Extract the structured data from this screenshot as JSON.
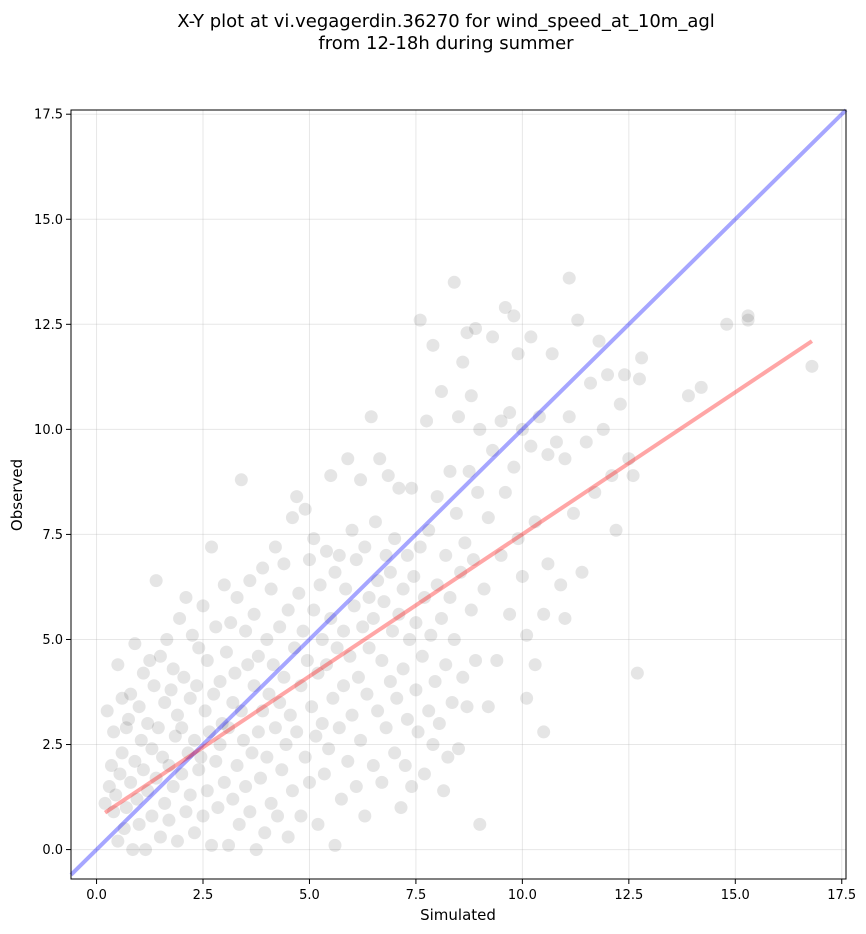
{
  "chart_data": {
    "type": "scatter",
    "title_lines": [
      "X-Y plot at vi.vegagerdin.36270 for wind_speed_at_10m_agl",
      "from 12-18h during summer"
    ],
    "xlabel": "Simulated",
    "ylabel": "Observed",
    "xlim": [
      -0.6,
      17.6
    ],
    "ylim": [
      -0.7,
      17.6
    ],
    "x_ticks": [
      0.0,
      2.5,
      5.0,
      7.5,
      10.0,
      12.5,
      15.0,
      17.5
    ],
    "x_tick_labels": [
      "0.0",
      "2.5",
      "5.0",
      "7.5",
      "10.0",
      "12.5",
      "15.0",
      "17.5"
    ],
    "y_ticks": [
      0.0,
      2.5,
      5.0,
      7.5,
      10.0,
      12.5,
      15.0,
      17.5
    ],
    "y_tick_labels": [
      "0.0",
      "2.5",
      "5.0",
      "7.5",
      "10.0",
      "12.5",
      "15.0",
      "17.5"
    ],
    "grid": true,
    "point_color": "#000000",
    "point_alpha": 0.1,
    "identity_line": {
      "x": [
        -0.6,
        17.6
      ],
      "y": [
        -0.6,
        17.6
      ],
      "color": "#0000ff",
      "alpha": 0.35
    },
    "regression_line": {
      "x": [
        0.2,
        16.8
      ],
      "y": [
        0.88,
        12.1
      ],
      "color": "#ff0000",
      "alpha": 0.35
    },
    "points": [
      [
        0.2,
        1.1
      ],
      [
        0.25,
        3.3
      ],
      [
        0.3,
        1.5
      ],
      [
        0.35,
        2.0
      ],
      [
        0.4,
        2.8
      ],
      [
        0.4,
        0.9
      ],
      [
        0.45,
        1.3
      ],
      [
        0.5,
        4.4
      ],
      [
        0.5,
        0.2
      ],
      [
        0.55,
        1.8
      ],
      [
        0.6,
        2.3
      ],
      [
        0.6,
        3.6
      ],
      [
        0.65,
        0.5
      ],
      [
        0.7,
        2.9
      ],
      [
        0.7,
        1.0
      ],
      [
        0.75,
        3.1
      ],
      [
        0.8,
        3.7
      ],
      [
        0.8,
        1.6
      ],
      [
        0.85,
        0.0
      ],
      [
        0.9,
        2.1
      ],
      [
        0.9,
        4.9
      ],
      [
        0.95,
        1.2
      ],
      [
        1.0,
        3.4
      ],
      [
        1.0,
        0.6
      ],
      [
        1.05,
        2.6
      ],
      [
        1.1,
        4.2
      ],
      [
        1.1,
        1.9
      ],
      [
        1.15,
        0.0
      ],
      [
        1.2,
        3.0
      ],
      [
        1.2,
        1.4
      ],
      [
        1.25,
        4.5
      ],
      [
        1.3,
        2.4
      ],
      [
        1.3,
        0.8
      ],
      [
        1.35,
        3.9
      ],
      [
        1.4,
        6.4
      ],
      [
        1.4,
        1.7
      ],
      [
        1.45,
        2.9
      ],
      [
        1.5,
        0.3
      ],
      [
        1.5,
        4.6
      ],
      [
        1.55,
        2.2
      ],
      [
        1.6,
        1.1
      ],
      [
        1.6,
        3.5
      ],
      [
        1.65,
        5.0
      ],
      [
        1.7,
        2.0
      ],
      [
        1.7,
        0.7
      ],
      [
        1.75,
        3.8
      ],
      [
        1.8,
        1.5
      ],
      [
        1.8,
        4.3
      ],
      [
        1.85,
        2.7
      ],
      [
        1.9,
        0.2
      ],
      [
        1.9,
        3.2
      ],
      [
        1.95,
        5.5
      ],
      [
        2.0,
        1.8
      ],
      [
        2.0,
        2.9
      ],
      [
        2.05,
        4.1
      ],
      [
        2.1,
        0.9
      ],
      [
        2.1,
        6.0
      ],
      [
        2.15,
        2.3
      ],
      [
        2.2,
        3.6
      ],
      [
        2.2,
        1.3
      ],
      [
        2.25,
        5.1
      ],
      [
        2.3,
        2.6
      ],
      [
        2.3,
        0.4
      ],
      [
        2.35,
        3.9
      ],
      [
        2.4,
        4.8
      ],
      [
        2.4,
        1.9
      ],
      [
        2.45,
        2.2
      ],
      [
        2.5,
        5.8
      ],
      [
        2.5,
        0.8
      ],
      [
        2.55,
        3.3
      ],
      [
        2.6,
        1.4
      ],
      [
        2.6,
        4.5
      ],
      [
        2.65,
        2.8
      ],
      [
        2.7,
        7.2
      ],
      [
        2.7,
        0.1
      ],
      [
        2.75,
        3.7
      ],
      [
        2.8,
        2.1
      ],
      [
        2.8,
        5.3
      ],
      [
        2.85,
        1.0
      ],
      [
        2.9,
        4.0
      ],
      [
        2.9,
        2.5
      ],
      [
        2.95,
        3.0
      ],
      [
        3.0,
        6.3
      ],
      [
        3.0,
        1.6
      ],
      [
        3.05,
        4.7
      ],
      [
        3.1,
        0.1
      ],
      [
        3.1,
        2.9
      ],
      [
        3.15,
        5.4
      ],
      [
        3.2,
        3.5
      ],
      [
        3.2,
        1.2
      ],
      [
        3.25,
        4.2
      ],
      [
        3.3,
        2.0
      ],
      [
        3.3,
        6.0
      ],
      [
        3.35,
        0.6
      ],
      [
        3.4,
        3.3
      ],
      [
        3.4,
        8.8
      ],
      [
        3.45,
        2.6
      ],
      [
        3.5,
        5.2
      ],
      [
        3.5,
        1.5
      ],
      [
        3.55,
        4.4
      ],
      [
        3.6,
        6.4
      ],
      [
        3.6,
        0.9
      ],
      [
        3.65,
        2.3
      ],
      [
        3.7,
        3.9
      ],
      [
        3.7,
        5.6
      ],
      [
        3.75,
        0.0
      ],
      [
        3.8,
        2.8
      ],
      [
        3.8,
        4.6
      ],
      [
        3.85,
        1.7
      ],
      [
        3.9,
        6.7
      ],
      [
        3.9,
        3.3
      ],
      [
        3.95,
        0.4
      ],
      [
        4.0,
        5.0
      ],
      [
        4.0,
        2.2
      ],
      [
        4.05,
        3.7
      ],
      [
        4.1,
        6.2
      ],
      [
        4.1,
        1.1
      ],
      [
        4.15,
        4.4
      ],
      [
        4.2,
        2.9
      ],
      [
        4.2,
        7.2
      ],
      [
        4.25,
        0.8
      ],
      [
        4.3,
        5.3
      ],
      [
        4.3,
        3.5
      ],
      [
        4.35,
        1.9
      ],
      [
        4.4,
        6.8
      ],
      [
        4.4,
        4.1
      ],
      [
        4.45,
        2.5
      ],
      [
        4.5,
        0.3
      ],
      [
        4.5,
        5.7
      ],
      [
        4.55,
        3.2
      ],
      [
        4.6,
        7.9
      ],
      [
        4.6,
        1.4
      ],
      [
        4.65,
        4.8
      ],
      [
        4.7,
        2.8
      ],
      [
        4.7,
        8.4
      ],
      [
        4.75,
        6.1
      ],
      [
        4.8,
        3.9
      ],
      [
        4.8,
        0.8
      ],
      [
        4.85,
        5.2
      ],
      [
        4.9,
        2.2
      ],
      [
        4.9,
        8.1
      ],
      [
        4.95,
        4.5
      ],
      [
        5.0,
        6.9
      ],
      [
        5.0,
        1.6
      ],
      [
        5.05,
        3.4
      ],
      [
        5.1,
        5.7
      ],
      [
        5.1,
        7.4
      ],
      [
        5.15,
        2.7
      ],
      [
        5.2,
        4.2
      ],
      [
        5.2,
        0.6
      ],
      [
        5.25,
        6.3
      ],
      [
        5.3,
        3.0
      ],
      [
        5.3,
        5.0
      ],
      [
        5.35,
        1.8
      ],
      [
        5.4,
        7.1
      ],
      [
        5.4,
        4.4
      ],
      [
        5.45,
        2.4
      ],
      [
        5.5,
        8.9
      ],
      [
        5.5,
        5.5
      ],
      [
        5.55,
        3.6
      ],
      [
        5.6,
        0.1
      ],
      [
        5.6,
        6.6
      ],
      [
        5.65,
        4.8
      ],
      [
        5.7,
        2.9
      ],
      [
        5.7,
        7.0
      ],
      [
        5.75,
        1.2
      ],
      [
        5.8,
        5.2
      ],
      [
        5.8,
        3.9
      ],
      [
        5.85,
        6.2
      ],
      [
        5.9,
        9.3
      ],
      [
        5.9,
        2.1
      ],
      [
        5.95,
        4.6
      ],
      [
        6.0,
        7.6
      ],
      [
        6.0,
        3.2
      ],
      [
        6.05,
        5.8
      ],
      [
        6.1,
        1.5
      ],
      [
        6.1,
        6.9
      ],
      [
        6.15,
        4.1
      ],
      [
        6.2,
        2.6
      ],
      [
        6.2,
        8.8
      ],
      [
        6.25,
        5.3
      ],
      [
        6.3,
        0.8
      ],
      [
        6.3,
        7.2
      ],
      [
        6.35,
        3.7
      ],
      [
        6.4,
        6.0
      ],
      [
        6.4,
        4.8
      ],
      [
        6.45,
        10.3
      ],
      [
        6.5,
        2.0
      ],
      [
        6.5,
        5.5
      ],
      [
        6.55,
        7.8
      ],
      [
        6.6,
        3.3
      ],
      [
        6.6,
        6.4
      ],
      [
        6.65,
        9.3
      ],
      [
        6.7,
        1.6
      ],
      [
        6.7,
        4.5
      ],
      [
        6.75,
        5.9
      ],
      [
        6.8,
        7.0
      ],
      [
        6.8,
        2.9
      ],
      [
        6.85,
        8.9
      ],
      [
        6.9,
        4.0
      ],
      [
        6.9,
        6.6
      ],
      [
        6.95,
        5.2
      ],
      [
        7.0,
        2.3
      ],
      [
        7.0,
        7.4
      ],
      [
        7.05,
        3.6
      ],
      [
        7.1,
        8.6
      ],
      [
        7.1,
        5.6
      ],
      [
        7.15,
        1.0
      ],
      [
        7.2,
        6.2
      ],
      [
        7.2,
        4.3
      ],
      [
        7.25,
        2.0
      ],
      [
        7.3,
        7.0
      ],
      [
        7.3,
        3.1
      ],
      [
        7.35,
        5.0
      ],
      [
        7.4,
        8.6
      ],
      [
        7.4,
        1.5
      ],
      [
        7.45,
        6.5
      ],
      [
        7.5,
        3.8
      ],
      [
        7.5,
        5.4
      ],
      [
        7.55,
        2.8
      ],
      [
        7.6,
        7.2
      ],
      [
        7.6,
        12.6
      ],
      [
        7.65,
        4.6
      ],
      [
        7.7,
        1.8
      ],
      [
        7.7,
        6.0
      ],
      [
        7.75,
        10.2
      ],
      [
        7.8,
        3.3
      ],
      [
        7.8,
        7.6
      ],
      [
        7.85,
        5.1
      ],
      [
        7.9,
        12.0
      ],
      [
        7.9,
        2.5
      ],
      [
        7.95,
        4.0
      ],
      [
        8.0,
        8.4
      ],
      [
        8.0,
        6.3
      ],
      [
        8.05,
        3.0
      ],
      [
        8.1,
        10.9
      ],
      [
        8.1,
        5.5
      ],
      [
        8.15,
        1.4
      ],
      [
        8.2,
        7.0
      ],
      [
        8.2,
        4.4
      ],
      [
        8.25,
        2.2
      ],
      [
        8.3,
        9.0
      ],
      [
        8.3,
        6.0
      ],
      [
        8.35,
        3.5
      ],
      [
        8.4,
        13.5
      ],
      [
        8.4,
        5.0
      ],
      [
        8.45,
        8.0
      ],
      [
        8.5,
        10.3
      ],
      [
        8.5,
        2.4
      ],
      [
        8.55,
        6.6
      ],
      [
        8.6,
        4.1
      ],
      [
        8.6,
        11.6
      ],
      [
        8.65,
        7.3
      ],
      [
        8.7,
        3.4
      ],
      [
        8.7,
        12.3
      ],
      [
        8.75,
        9.0
      ],
      [
        8.8,
        5.7
      ],
      [
        8.8,
        10.8
      ],
      [
        8.85,
        6.9
      ],
      [
        8.9,
        12.4
      ],
      [
        8.9,
        4.5
      ],
      [
        8.95,
        8.5
      ],
      [
        9.0,
        0.6
      ],
      [
        9.0,
        10.0
      ],
      [
        9.1,
        6.2
      ],
      [
        9.2,
        7.9
      ],
      [
        9.2,
        3.4
      ],
      [
        9.3,
        12.2
      ],
      [
        9.3,
        9.5
      ],
      [
        9.4,
        4.5
      ],
      [
        9.5,
        10.2
      ],
      [
        9.5,
        7.0
      ],
      [
        9.6,
        12.9
      ],
      [
        9.6,
        8.5
      ],
      [
        9.7,
        10.4
      ],
      [
        9.7,
        5.6
      ],
      [
        9.8,
        12.7
      ],
      [
        9.8,
        9.1
      ],
      [
        9.9,
        7.4
      ],
      [
        9.9,
        11.8
      ],
      [
        10.0,
        10.0
      ],
      [
        10.0,
        6.5
      ],
      [
        10.1,
        5.1
      ],
      [
        10.1,
        3.6
      ],
      [
        10.2,
        12.2
      ],
      [
        10.2,
        9.6
      ],
      [
        10.3,
        4.4
      ],
      [
        10.3,
        7.8
      ],
      [
        10.4,
        10.3
      ],
      [
        10.5,
        5.6
      ],
      [
        10.5,
        2.8
      ],
      [
        10.6,
        9.4
      ],
      [
        10.6,
        6.8
      ],
      [
        10.7,
        11.8
      ],
      [
        10.8,
        9.7
      ],
      [
        10.9,
        6.3
      ],
      [
        11.0,
        9.3
      ],
      [
        11.0,
        5.5
      ],
      [
        11.1,
        13.6
      ],
      [
        11.1,
        10.3
      ],
      [
        11.2,
        8.0
      ],
      [
        11.3,
        12.6
      ],
      [
        11.4,
        6.6
      ],
      [
        11.5,
        9.7
      ],
      [
        11.6,
        11.1
      ],
      [
        11.7,
        8.5
      ],
      [
        11.8,
        12.1
      ],
      [
        11.9,
        10.0
      ],
      [
        12.0,
        11.3
      ],
      [
        12.1,
        8.9
      ],
      [
        12.2,
        7.6
      ],
      [
        12.3,
        10.6
      ],
      [
        12.4,
        11.3
      ],
      [
        12.5,
        9.3
      ],
      [
        12.6,
        8.9
      ],
      [
        12.7,
        4.2
      ],
      [
        12.8,
        11.7
      ],
      [
        12.75,
        11.2
      ],
      [
        13.9,
        10.8
      ],
      [
        14.2,
        11.0
      ],
      [
        14.8,
        12.5
      ],
      [
        15.3,
        12.7
      ],
      [
        15.3,
        12.6
      ],
      [
        16.8,
        11.5
      ]
    ]
  }
}
